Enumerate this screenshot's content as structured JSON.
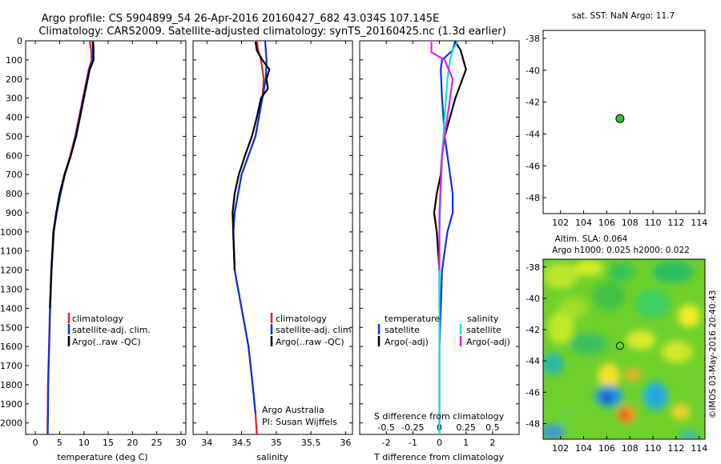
{
  "header": {
    "line1": "Argo profile: CS 5904899_54 26-Apr-2016 20160427_682 43.034S 107.145E",
    "line2": "Climatology: CARS2009. Satellite-adjusted climatology: synTS_20160425.nc (1.3d earlier)"
  },
  "colors": {
    "climatology": "#e02020",
    "satellite": "#1030e0",
    "argo": "#000000",
    "sat_salinity": "#10e0e0",
    "argo_adj_salinity": "#e020e0",
    "float_marker": "#22cc22"
  },
  "depth_ticks": [
    "0",
    "100",
    "200",
    "300",
    "400",
    "500",
    "600",
    "700",
    "800",
    "900",
    "1000",
    "1100",
    "1200",
    "1300",
    "1400",
    "1500",
    "1600",
    "1700",
    "1800",
    "1900",
    "2000"
  ],
  "chart_data": [
    {
      "type": "line",
      "xlabel": "temperature (deg C)",
      "ylabel": "",
      "xlim": [
        -2,
        31
      ],
      "ylim": [
        2060,
        0
      ],
      "xticks": [
        "0",
        "5",
        "10",
        "15",
        "20",
        "25",
        "30"
      ],
      "legend": {
        "placement": "lower-center",
        "entries": [
          "climatology",
          "satellite-adj. clim.",
          "Argo(..raw -QC)"
        ]
      },
      "series": [
        {
          "name": "climatology",
          "color": "#e02020",
          "x": [
            11.2,
            11.5,
            11.6,
            11.0,
            9.8,
            9.0,
            8.2,
            7.2,
            6.0,
            5.1,
            4.3,
            3.7,
            3.3,
            3.0,
            2.8,
            2.7,
            2.6,
            2.55,
            2.5
          ],
          "y": [
            0,
            50,
            100,
            150,
            300,
            400,
            500,
            600,
            700,
            800,
            900,
            1000,
            1200,
            1400,
            1600,
            1700,
            1800,
            1950,
            2060
          ]
        },
        {
          "name": "satellite-adj. clim.",
          "color": "#1030e0",
          "x": [
            11.8,
            11.9,
            11.8,
            11.1,
            9.9,
            9.1,
            8.3,
            7.3,
            6.1,
            5.2,
            4.4,
            3.8,
            3.35,
            3.05,
            2.85,
            2.75,
            2.65,
            2.6,
            2.55
          ],
          "y": [
            0,
            50,
            100,
            150,
            300,
            400,
            500,
            600,
            700,
            800,
            900,
            1000,
            1200,
            1400,
            1600,
            1700,
            1800,
            1950,
            2060
          ]
        },
        {
          "name": "Argo(..raw -QC)",
          "color": "#000000",
          "x": [
            11.9,
            12.0,
            12.0,
            11.2,
            10.0,
            9.2,
            8.4,
            7.3,
            6.0,
            5.0,
            4.3,
            3.75,
            3.3,
            3.0
          ],
          "y": [
            5,
            50,
            100,
            150,
            300,
            400,
            500,
            600,
            700,
            800,
            900,
            1000,
            1200,
            1400
          ]
        }
      ]
    },
    {
      "type": "line",
      "xlabel": "salinity",
      "ylabel": "",
      "xlim": [
        33.8,
        36.1
      ],
      "ylim": [
        2060,
        0
      ],
      "xticks": [
        "34",
        "34.5",
        "35",
        "35.5",
        "36"
      ],
      "legend": {
        "placement": "lower-right",
        "entries": [
          "climatology",
          "satellite-adj. clim.",
          "Argo(..raw -QC)"
        ]
      },
      "annotations": [
        "Argo Australia",
        "PI: Susan Wijffels"
      ],
      "series": [
        {
          "name": "climatology",
          "color": "#e02020",
          "x": [
            34.72,
            34.74,
            34.78,
            34.82,
            34.8,
            34.75,
            34.7,
            34.6,
            34.5,
            34.45,
            34.4,
            34.38,
            34.4,
            34.5,
            34.6,
            34.66,
            34.7,
            34.72
          ],
          "y": [
            0,
            50,
            100,
            200,
            300,
            400,
            500,
            600,
            700,
            800,
            900,
            1000,
            1200,
            1400,
            1600,
            1800,
            1950,
            2060
          ]
        },
        {
          "name": "satellite-adj. clim.",
          "color": "#1030e0",
          "x": [
            34.84,
            34.85,
            34.86,
            34.85,
            34.8,
            34.75,
            34.7,
            34.6,
            34.5,
            34.45,
            34.4,
            34.38,
            34.4,
            34.5,
            34.6,
            34.66,
            34.7
          ],
          "y": [
            0,
            50,
            100,
            200,
            300,
            400,
            500,
            600,
            700,
            800,
            900,
            1000,
            1200,
            1400,
            1600,
            1800,
            1950
          ]
        },
        {
          "name": "Argo(..raw -QC)",
          "color": "#000000",
          "x": [
            34.7,
            34.72,
            34.8,
            34.9,
            34.86,
            34.88,
            34.78,
            34.72,
            34.65,
            34.55,
            34.46,
            34.4,
            34.37,
            34.38,
            34.4
          ],
          "y": [
            5,
            50,
            100,
            150,
            200,
            250,
            300,
            400,
            500,
            600,
            700,
            800,
            900,
            1000,
            1200
          ]
        }
      ]
    },
    {
      "type": "line",
      "xlabel": "T difference from climatology",
      "secondary_xlabel": "S difference from climatology",
      "xlim": [
        -3,
        3
      ],
      "ylim": [
        2060,
        0
      ],
      "xticks": [
        "-2",
        "-1",
        "0",
        "1",
        "2"
      ],
      "secondary_xticks": [
        "-0.5",
        "-0.25",
        "0",
        "0.25",
        "0.5"
      ],
      "legend": {
        "placement": "lower-center",
        "groups": [
          "temperature",
          "salinity"
        ],
        "entries": [
          "satellite",
          "Argo(-adj)",
          "satellite",
          "Argo(-adj)"
        ]
      },
      "series": [
        {
          "name": "satellite",
          "color": "#1030e0",
          "x": [
            0.6,
            0.5,
            0.1,
            0.05,
            0.1,
            0.15,
            0.2,
            0.3,
            0.4,
            0.5,
            0.5,
            0.3,
            0.1,
            0.05,
            0,
            0
          ],
          "y": [
            0,
            50,
            100,
            150,
            300,
            400,
            500,
            600,
            700,
            800,
            900,
            1000,
            1200,
            1400,
            1600,
            2060
          ]
        },
        {
          "name": "Argo(-adj)",
          "color": "#000000",
          "x": [
            0.6,
            0.8,
            1.0,
            0.6,
            0.4,
            0.2,
            0.1,
            0.05,
            -0.1,
            -0.2,
            -0.1,
            0,
            0
          ],
          "y": [
            5,
            50,
            150,
            300,
            400,
            500,
            600,
            700,
            800,
            900,
            1000,
            1200,
            1400
          ]
        },
        {
          "name": "satellite",
          "color": "#10e0e0",
          "x": [
            0.7,
            0.5,
            0.4,
            0.3,
            0.2,
            0.1,
            0.05,
            0,
            0,
            0
          ],
          "y": [
            0,
            50,
            100,
            200,
            400,
            600,
            800,
            1000,
            1400,
            2060
          ]
        },
        {
          "name": "Argo(-adj)",
          "color": "#e020e0",
          "x": [
            -0.3,
            -0.3,
            0.2,
            0.5,
            0.3,
            0.1,
            0,
            0
          ],
          "y": [
            5,
            60,
            100,
            200,
            400,
            600,
            900,
            1200
          ]
        }
      ]
    },
    {
      "type": "scatter",
      "title": "sat. SST: NaN Argo: 11.7",
      "xlim": [
        100.5,
        114.5
      ],
      "ylim": [
        -49,
        -37.5
      ],
      "xticks": [
        "102",
        "104",
        "106",
        "108",
        "110",
        "112",
        "114"
      ],
      "yticks": [
        "-38",
        "-40",
        "-42",
        "-44",
        "-46",
        "-48"
      ],
      "points": [
        {
          "x": 107.145,
          "y": -43.034
        }
      ]
    },
    {
      "type": "heatmap",
      "title": "Altim. SLA: 0.064",
      "subtitle": "Argo h1000: 0.025 h2000: 0.022",
      "xlim": [
        100.5,
        114.5
      ],
      "ylim": [
        -49,
        -37.5
      ],
      "xticks": [
        "102",
        "104",
        "106",
        "108",
        "110",
        "112",
        "114"
      ],
      "yticks": [
        "-38",
        "-40",
        "-42",
        "-44",
        "-46",
        "-48"
      ],
      "points": [
        {
          "x": 107.145,
          "y": -43.034
        }
      ],
      "side_label": "©IMOS 03-May-2016 20:40:43"
    }
  ]
}
